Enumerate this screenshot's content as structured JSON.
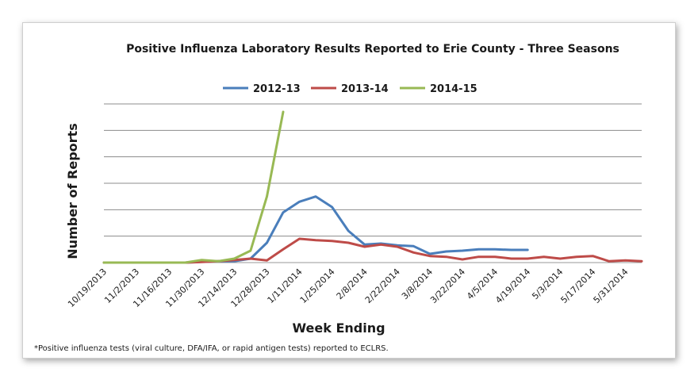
{
  "chart_data": {
    "type": "line",
    "title": "Positive Influenza Laboratory Results Reported to Erie County - Three Seasons",
    "xlabel": "Week Ending",
    "ylabel": "Number of Reports",
    "footnote": "*Positive influenza tests (viral culture, DFA/IFA, or rapid antigen tests) reported to ECLRS.",
    "x_tick_labels": [
      "10/19/2013",
      "11/2/2013",
      "11/16/2013",
      "11/30/2013",
      "12/14/2013",
      "12/28/2013",
      "1/11/2014",
      "1/25/2014",
      "2/8/2014",
      "2/22/2014",
      "3/8/2014",
      "3/22/2014",
      "4/5/2014",
      "4/19/2014",
      "5/3/2014",
      "5/17/2014",
      "5/31/2014"
    ],
    "ylim": [
      0,
      6
    ],
    "grid": true,
    "legend_position": "top-center",
    "series": [
      {
        "name": "2012-13",
        "color": "#4a7ebb",
        "values": [
          0,
          0,
          0,
          0,
          0,
          0,
          0.03,
          0.05,
          0.05,
          0.15,
          0.75,
          1.9,
          2.3,
          2.5,
          2.1,
          1.2,
          0.68,
          0.72,
          0.65,
          0.62,
          0.33,
          0.42,
          0.45,
          0.5,
          0.5,
          0.48,
          0.48
        ]
      },
      {
        "name": "2013-14",
        "color": "#be4b48",
        "values": [
          0,
          0,
          0,
          0,
          0,
          0,
          0.02,
          0.05,
          0.1,
          0.15,
          0.08,
          0.5,
          0.9,
          0.85,
          0.82,
          0.75,
          0.6,
          0.68,
          0.6,
          0.38,
          0.25,
          0.22,
          0.12,
          0.22,
          0.22,
          0.15,
          0.15,
          0.22,
          0.15,
          0.22,
          0.25,
          0.05,
          0.08,
          0.05
        ]
      },
      {
        "name": "2014-15",
        "color": "#98b954",
        "values": [
          0,
          0,
          0,
          0,
          0,
          0,
          0.1,
          0.05,
          0.15,
          0.45,
          2.5,
          5.7
        ]
      }
    ]
  }
}
